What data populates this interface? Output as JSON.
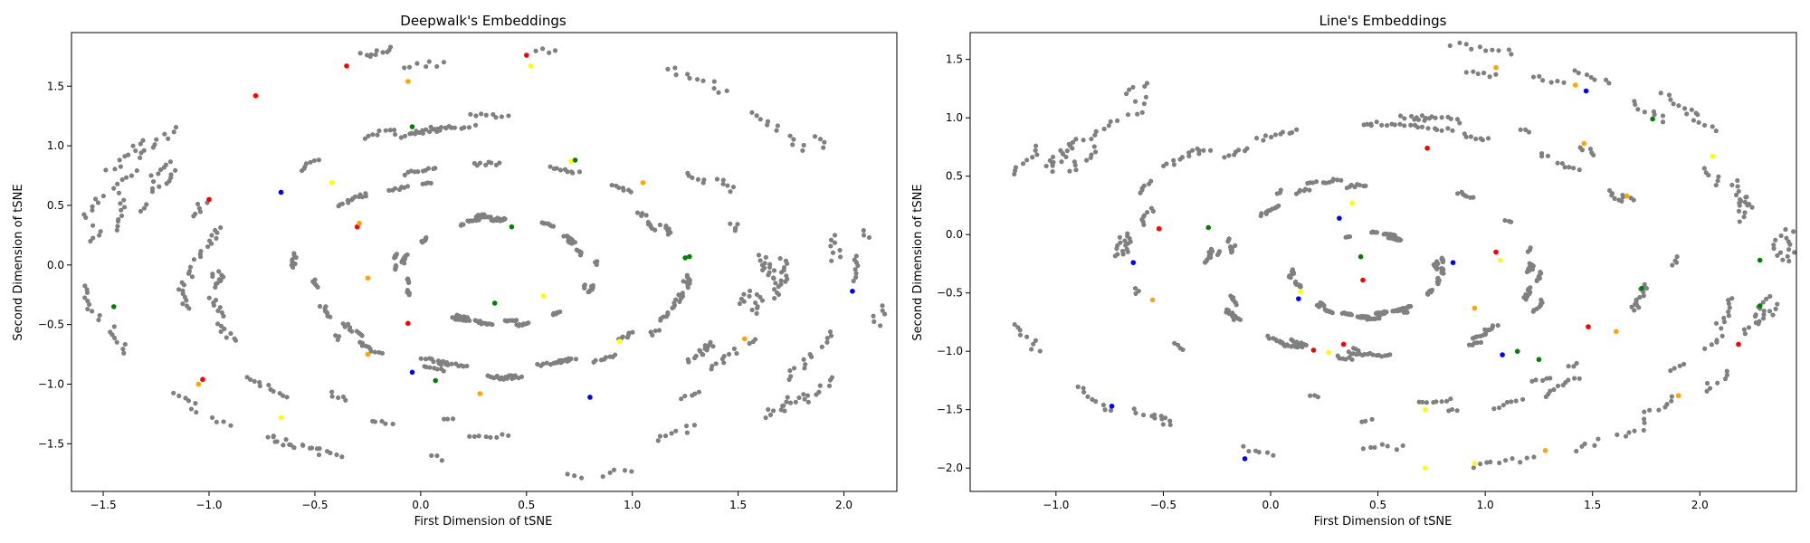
{
  "chart_data": [
    {
      "type": "scatter",
      "title": "Deepwalk's Embeddings",
      "xlabel": "First Dimension of tSNE",
      "ylabel": "Second Dimension of tSNE",
      "xlim": [
        -1.65,
        2.25
      ],
      "ylim": [
        -1.9,
        1.95
      ],
      "xticks": [
        -1.5,
        -1.0,
        -0.5,
        0.0,
        0.5,
        1.0,
        1.5,
        2.0
      ],
      "xtick_labels": [
        "−1.5",
        "−1.0",
        "−0.5",
        "0.0",
        "0.5",
        "1.0",
        "1.5",
        "2.0"
      ],
      "yticks": [
        -1.5,
        -1.0,
        -0.5,
        0.0,
        0.5,
        1.0,
        1.5
      ],
      "ytick_labels": [
        "−1.5",
        "−1.0",
        "−0.5",
        "0.0",
        "0.5",
        "1.0",
        "1.5"
      ],
      "grid": false,
      "legend": "none",
      "background_points": {
        "color": "#808080",
        "structure": "scattered short chains along concentric elliptical rings",
        "rings": [
          {
            "cx": 0.3,
            "cy": 0.0,
            "rx": 1.8,
            "ry": 1.75
          },
          {
            "cx": 0.3,
            "cy": -0.05,
            "rx": 1.35,
            "ry": 1.3
          },
          {
            "cx": 0.35,
            "cy": -0.05,
            "rx": 0.9,
            "ry": 0.85
          },
          {
            "cx": 0.35,
            "cy": -0.05,
            "rx": 0.45,
            "ry": 0.45
          }
        ]
      },
      "highlighted_points": [
        {
          "x": 0.5,
          "y": 1.76,
          "color": "#ff0000"
        },
        {
          "x": 0.52,
          "y": 1.67,
          "color": "#ffff00"
        },
        {
          "x": -0.78,
          "y": 1.42,
          "color": "#ff0000"
        },
        {
          "x": -0.35,
          "y": 1.67,
          "color": "#ff0000"
        },
        {
          "x": -0.06,
          "y": 1.54,
          "color": "#ffa500"
        },
        {
          "x": -0.04,
          "y": 1.16,
          "color": "#008000"
        },
        {
          "x": 0.71,
          "y": 0.87,
          "color": "#ffff00"
        },
        {
          "x": 0.73,
          "y": 0.88,
          "color": "#008000"
        },
        {
          "x": 1.05,
          "y": 0.69,
          "color": "#ffa500"
        },
        {
          "x": -0.66,
          "y": 0.61,
          "color": "#0000ff"
        },
        {
          "x": -0.42,
          "y": 0.69,
          "color": "#ffff00"
        },
        {
          "x": -1.0,
          "y": 0.55,
          "color": "#ff0000"
        },
        {
          "x": -0.3,
          "y": 0.32,
          "color": "#ff0000"
        },
        {
          "x": -0.29,
          "y": 0.35,
          "color": "#ffa500"
        },
        {
          "x": 0.43,
          "y": 0.32,
          "color": "#008000"
        },
        {
          "x": 1.25,
          "y": 0.06,
          "color": "#008000"
        },
        {
          "x": 1.27,
          "y": 0.07,
          "color": "#008000"
        },
        {
          "x": -0.25,
          "y": -0.11,
          "color": "#ffa500"
        },
        {
          "x": 0.58,
          "y": -0.26,
          "color": "#ffff00"
        },
        {
          "x": 0.35,
          "y": -0.32,
          "color": "#008000"
        },
        {
          "x": 2.04,
          "y": -0.22,
          "color": "#0000ff"
        },
        {
          "x": -1.45,
          "y": -0.35,
          "color": "#008000"
        },
        {
          "x": -0.06,
          "y": -0.49,
          "color": "#ff0000"
        },
        {
          "x": 0.94,
          "y": -0.64,
          "color": "#ffff00"
        },
        {
          "x": 1.53,
          "y": -0.62,
          "color": "#ffa500"
        },
        {
          "x": -0.25,
          "y": -0.75,
          "color": "#ffa500"
        },
        {
          "x": -0.04,
          "y": -0.9,
          "color": "#0000ff"
        },
        {
          "x": -1.03,
          "y": -0.96,
          "color": "#ff0000"
        },
        {
          "x": -1.05,
          "y": -1.0,
          "color": "#ffa500"
        },
        {
          "x": 0.07,
          "y": -0.97,
          "color": "#008000"
        },
        {
          "x": 0.28,
          "y": -1.08,
          "color": "#ffa500"
        },
        {
          "x": 0.8,
          "y": -1.11,
          "color": "#0000ff"
        },
        {
          "x": -0.66,
          "y": -1.28,
          "color": "#ffff00"
        }
      ]
    },
    {
      "type": "scatter",
      "title": "Line's Embeddings",
      "xlabel": "First Dimension of tSNE",
      "ylabel": "Second Dimension of tSNE",
      "xlim": [
        -1.4,
        2.45
      ],
      "ylim": [
        -2.2,
        1.73
      ],
      "xticks": [
        -1.0,
        -0.5,
        0.0,
        0.5,
        1.0,
        1.5,
        2.0
      ],
      "xtick_labels": [
        "−1.0",
        "−0.5",
        "0.0",
        "0.5",
        "1.0",
        "1.5",
        "2.0"
      ],
      "yticks": [
        -2.0,
        -1.5,
        -1.0,
        -0.5,
        0.0,
        0.5,
        1.0,
        1.5
      ],
      "ytick_labels": [
        "−2.0",
        "−1.5",
        "−1.0",
        "−0.5",
        "0.0",
        "0.5",
        "1.0",
        "1.5"
      ],
      "grid": false,
      "legend": "none",
      "background_points": {
        "color": "#808080",
        "structure": "scattered short chains along concentric elliptical rings",
        "rings": [
          {
            "cx": 0.55,
            "cy": -0.2,
            "rx": 1.75,
            "ry": 1.75
          },
          {
            "cx": 0.55,
            "cy": -0.25,
            "rx": 1.25,
            "ry": 1.25
          },
          {
            "cx": 0.5,
            "cy": -0.3,
            "rx": 0.75,
            "ry": 0.75
          },
          {
            "cx": 0.45,
            "cy": -0.35,
            "rx": 0.35,
            "ry": 0.35
          }
        ]
      },
      "highlighted_points": [
        {
          "x": 1.05,
          "y": 1.43,
          "color": "#ffa500"
        },
        {
          "x": 1.42,
          "y": 1.28,
          "color": "#ffa500"
        },
        {
          "x": 1.47,
          "y": 1.23,
          "color": "#0000ff"
        },
        {
          "x": 1.78,
          "y": 0.99,
          "color": "#008000"
        },
        {
          "x": 1.46,
          "y": 0.78,
          "color": "#ffa500"
        },
        {
          "x": 2.06,
          "y": 0.67,
          "color": "#ffff00"
        },
        {
          "x": 0.73,
          "y": 0.74,
          "color": "#ff0000"
        },
        {
          "x": 0.32,
          "y": 0.14,
          "color": "#0000ff"
        },
        {
          "x": 0.38,
          "y": 0.27,
          "color": "#ffff00"
        },
        {
          "x": 1.66,
          "y": 0.33,
          "color": "#ffa500"
        },
        {
          "x": -0.52,
          "y": 0.05,
          "color": "#ff0000"
        },
        {
          "x": -0.29,
          "y": 0.06,
          "color": "#008000"
        },
        {
          "x": -0.64,
          "y": -0.24,
          "color": "#0000ff"
        },
        {
          "x": 0.42,
          "y": -0.19,
          "color": "#008000"
        },
        {
          "x": 1.05,
          "y": -0.15,
          "color": "#ff0000"
        },
        {
          "x": 1.07,
          "y": -0.22,
          "color": "#ffff00"
        },
        {
          "x": 0.85,
          "y": -0.24,
          "color": "#0000ff"
        },
        {
          "x": 0.43,
          "y": -0.39,
          "color": "#ff0000"
        },
        {
          "x": 2.28,
          "y": -0.22,
          "color": "#008000"
        },
        {
          "x": 1.73,
          "y": -0.46,
          "color": "#008000"
        },
        {
          "x": 0.13,
          "y": -0.55,
          "color": "#0000ff"
        },
        {
          "x": 0.14,
          "y": -0.49,
          "color": "#ffff00"
        },
        {
          "x": -0.55,
          "y": -0.56,
          "color": "#ffa500"
        },
        {
          "x": 0.95,
          "y": -0.63,
          "color": "#ffa500"
        },
        {
          "x": 2.28,
          "y": -0.61,
          "color": "#008000"
        },
        {
          "x": 1.48,
          "y": -0.79,
          "color": "#ff0000"
        },
        {
          "x": 1.61,
          "y": -0.83,
          "color": "#ffa500"
        },
        {
          "x": 0.2,
          "y": -0.99,
          "color": "#ff0000"
        },
        {
          "x": 0.34,
          "y": -0.94,
          "color": "#ff0000"
        },
        {
          "x": 0.27,
          "y": -1.01,
          "color": "#ffff00"
        },
        {
          "x": 1.08,
          "y": -1.03,
          "color": "#0000ff"
        },
        {
          "x": 1.15,
          "y": -1.0,
          "color": "#008000"
        },
        {
          "x": 1.25,
          "y": -1.07,
          "color": "#008000"
        },
        {
          "x": 2.18,
          "y": -0.94,
          "color": "#ff0000"
        },
        {
          "x": -0.74,
          "y": -1.47,
          "color": "#0000ff"
        },
        {
          "x": 0.72,
          "y": -1.5,
          "color": "#ffff00"
        },
        {
          "x": 1.28,
          "y": -1.85,
          "color": "#ffa500"
        },
        {
          "x": 1.9,
          "y": -1.38,
          "color": "#ffa500"
        },
        {
          "x": -0.12,
          "y": -1.92,
          "color": "#0000ff"
        },
        {
          "x": 0.72,
          "y": -2.0,
          "color": "#ffff00"
        },
        {
          "x": 0.95,
          "y": -1.96,
          "color": "#ffff00"
        }
      ]
    }
  ]
}
